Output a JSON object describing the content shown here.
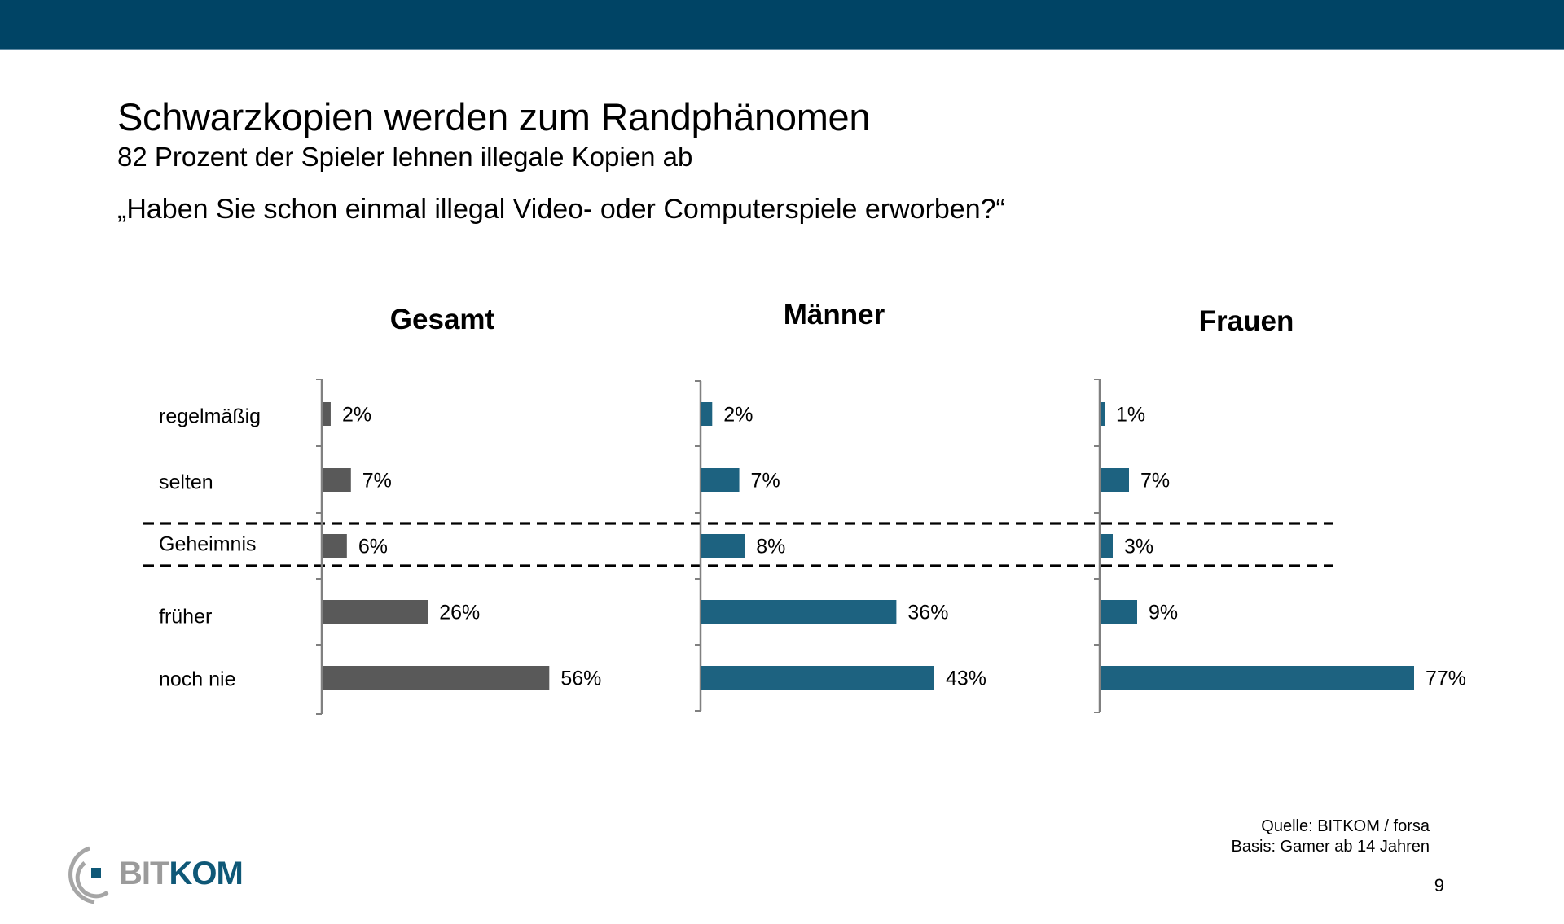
{
  "header": {
    "title": "Schwarzkopien werden zum Randphänomen",
    "subtitle": "82 Prozent der Spieler lehnen illegale Kopien ab",
    "question": "„Haben Sie schon einmal illegal Video- oder Computerspiele erworben?“"
  },
  "colors": {
    "header_bar": "#004465",
    "gesamt_bar": "#595959",
    "gender_bar": "#1d6280",
    "axis": "#808080",
    "divider": "#000000"
  },
  "chart_data": {
    "type": "bar",
    "orientation": "horizontal",
    "title": "„Haben Sie schon einmal illegal Video- oder Computerspiele erworben?“",
    "categories": [
      "regelmäßig",
      "selten",
      "Geheimnis",
      "früher",
      "noch nie"
    ],
    "value_suffix": "%",
    "highlighted_category": "Geheimnis",
    "series": [
      {
        "name": "Gesamt",
        "values": [
          2,
          7,
          6,
          26,
          56
        ],
        "labels": [
          "2%",
          "7%",
          "6%",
          "26%",
          "56%"
        ]
      },
      {
        "name": "Männer",
        "values": [
          2,
          7,
          8,
          36,
          43
        ],
        "labels": [
          "2%",
          "7%",
          "8%",
          "36%",
          "43%"
        ]
      },
      {
        "name": "Frauen",
        "values": [
          1,
          7,
          3,
          9,
          77
        ],
        "labels": [
          "1%",
          "7%",
          "3%",
          "9%",
          "77%"
        ]
      }
    ],
    "xlabel": "",
    "ylabel": "",
    "grid": false,
    "legend": "none"
  },
  "footer": {
    "source": "Quelle: BITKOM / forsa",
    "basis": "Basis: Gamer ab 14 Jahren",
    "page_number": "9",
    "logo_part1": "BIT",
    "logo_part2": "KOM"
  }
}
